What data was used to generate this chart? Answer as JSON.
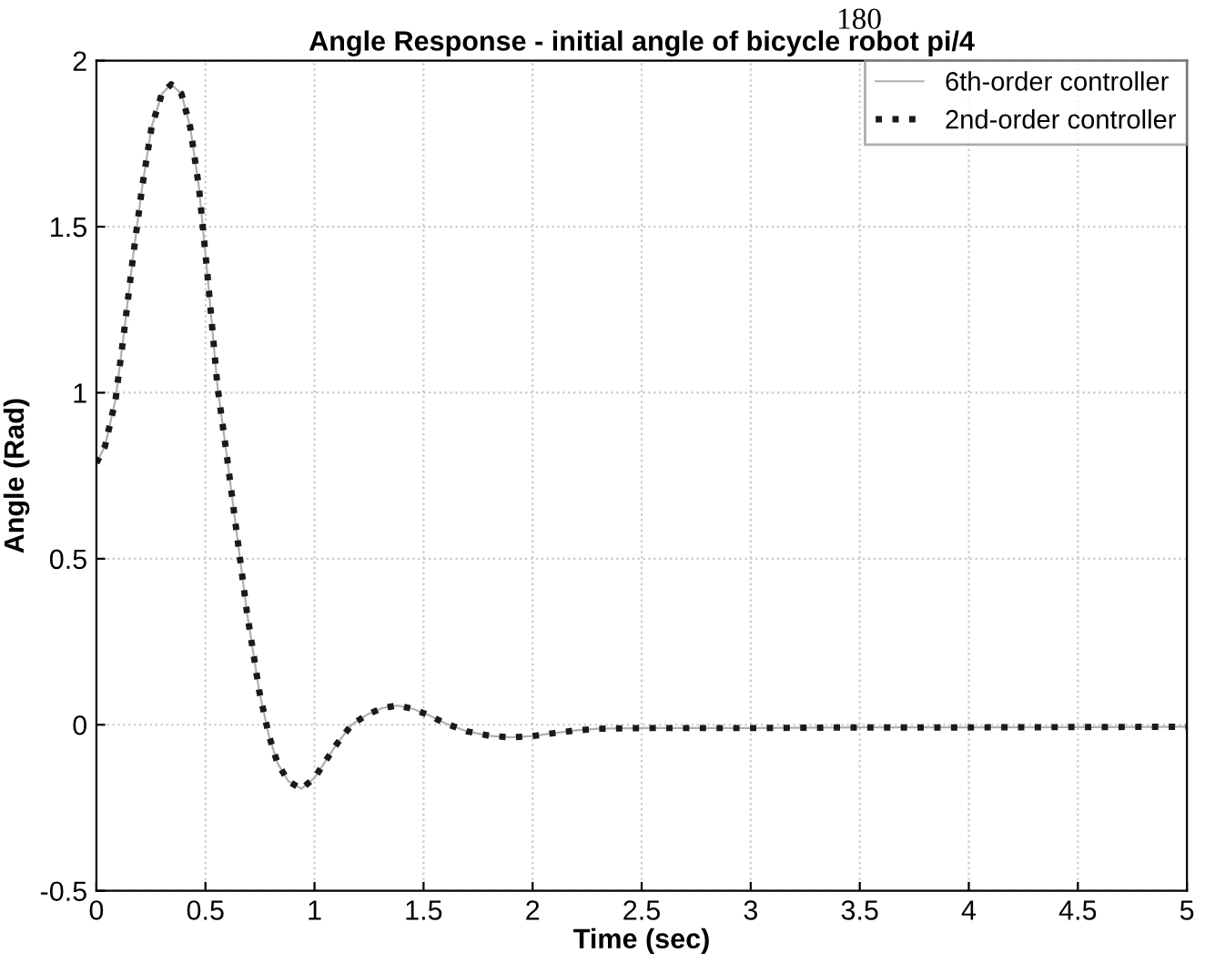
{
  "chart_data": {
    "type": "line",
    "title": "Angle Response - initial angle of bicycle robot pi/4",
    "xlabel": "Time (sec)",
    "ylabel": "Angle (Rad)",
    "annotations": [
      "180"
    ],
    "x": [
      0,
      0.04,
      0.088,
      0.13,
      0.17,
      0.21,
      0.253,
      0.3,
      0.343,
      0.39,
      0.43,
      0.47,
      0.51,
      0.555,
      0.6,
      0.637,
      0.69,
      0.747,
      0.79,
      0.83,
      0.88,
      0.94,
      1.0,
      1.05,
      1.1,
      1.17,
      1.24,
      1.31,
      1.38,
      1.45,
      1.52,
      1.6,
      1.7,
      1.8,
      1.9,
      2.0,
      2.1,
      2.2,
      2.3,
      2.5,
      3.0,
      3.5,
      4.0,
      4.5,
      5.0
    ],
    "series": [
      {
        "name": "6th-order controller",
        "color": "#b0b0b0",
        "line_style": "solid",
        "values": [
          0.788,
          0.84,
          0.98,
          1.2,
          1.42,
          1.62,
          1.8,
          1.9,
          1.929,
          1.9,
          1.8,
          1.62,
          1.35,
          1.02,
          0.8,
          0.61,
          0.34,
          0.1,
          -0.03,
          -0.115,
          -0.17,
          -0.193,
          -0.16,
          -0.11,
          -0.06,
          0.0,
          0.03,
          0.05,
          0.058,
          0.048,
          0.03,
          0.004,
          -0.02,
          -0.033,
          -0.038,
          -0.034,
          -0.025,
          -0.017,
          -0.012,
          -0.01,
          -0.01,
          -0.008,
          -0.008,
          -0.007,
          -0.006
        ]
      },
      {
        "name": "2nd-order controller",
        "color": "#1a1a1a",
        "line_style": "dotted",
        "values": [
          0.788,
          0.84,
          0.98,
          1.2,
          1.42,
          1.62,
          1.8,
          1.9,
          1.929,
          1.9,
          1.8,
          1.62,
          1.35,
          1.02,
          0.8,
          0.61,
          0.34,
          0.1,
          -0.03,
          -0.115,
          -0.17,
          -0.193,
          -0.16,
          -0.11,
          -0.06,
          0.0,
          0.03,
          0.05,
          0.058,
          0.048,
          0.03,
          0.004,
          -0.02,
          -0.033,
          -0.038,
          -0.034,
          -0.025,
          -0.017,
          -0.012,
          -0.01,
          -0.01,
          -0.008,
          -0.008,
          -0.007,
          -0.006
        ]
      }
    ],
    "xlim": [
      0,
      5
    ],
    "xticks": [
      0,
      0.5,
      1,
      1.5,
      2,
      2.5,
      3,
      3.5,
      4,
      4.5,
      5
    ],
    "ylim": [
      -0.5,
      2
    ],
    "yticks": [
      -0.5,
      0,
      0.5,
      1,
      1.5,
      2
    ],
    "grid": true,
    "legend": "top right"
  }
}
